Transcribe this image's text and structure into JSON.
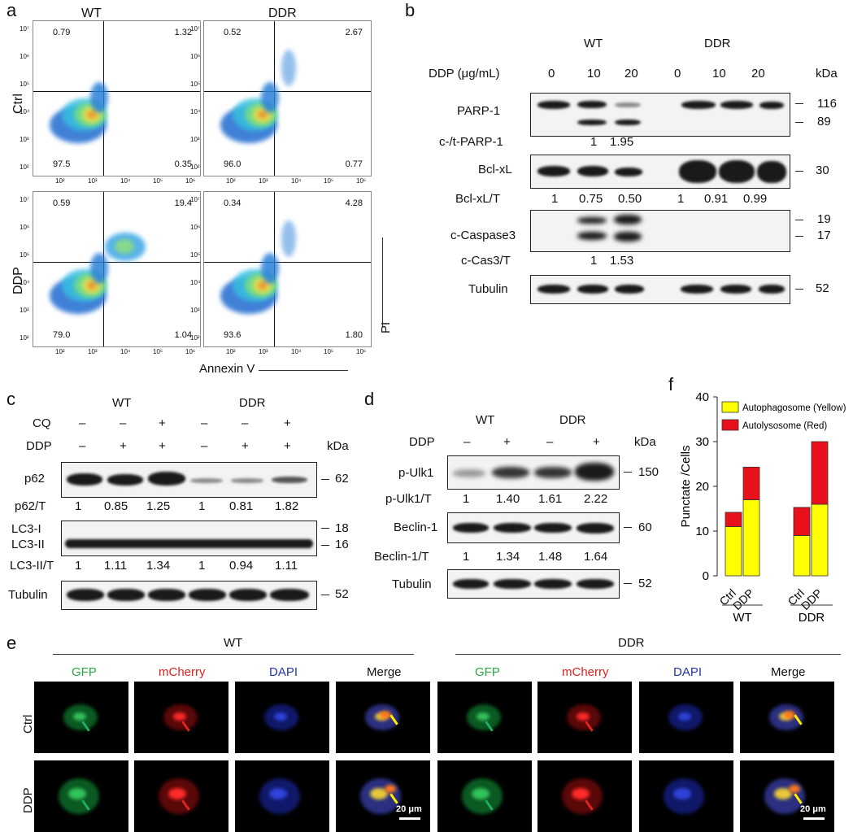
{
  "panel_a": {
    "letter": "a",
    "col_labels": [
      "WT",
      "DDR"
    ],
    "row_labels": [
      "Ctrl",
      "DDP"
    ],
    "x_axis_label": "Annexin V",
    "y_axis_label": "PI",
    "tick_labels": [
      "10²",
      "10³",
      "10⁴",
      "10⁵",
      "10⁶"
    ],
    "y_tick_labels": [
      "10⁷",
      "10⁶",
      "10⁵",
      "10⁴",
      "10³",
      "10²"
    ],
    "plots": [
      {
        "ul": "0.79",
        "ur": "1.32",
        "ll": "97.5",
        "lr": "0.35"
      },
      {
        "ul": "0.52",
        "ur": "2.67",
        "ll": "96.0",
        "lr": "0.77"
      },
      {
        "ul": "0.59",
        "ur": "19.4",
        "ll": "79.0",
        "lr": "1.04"
      },
      {
        "ul": "0.34",
        "ur": "4.28",
        "ll": "93.6",
        "lr": "1.80"
      }
    ]
  },
  "panel_b": {
    "letter": "b",
    "group_labels": [
      "WT",
      "DDR"
    ],
    "dose_label": "DDP (μg/mL)",
    "doses": [
      "0",
      "10",
      "20",
      "0",
      "10",
      "20"
    ],
    "kda_label": "kDa",
    "rows": {
      "parp": {
        "label": "PARP-1",
        "kda": [
          "116",
          "89"
        ]
      },
      "parp_ratio": {
        "label": "c-/t-PARP-1",
        "values": [
          "1",
          "1.95"
        ]
      },
      "bcl": {
        "label": "Bcl-xL",
        "kda": [
          "30"
        ]
      },
      "bcl_ratio": {
        "label": "Bcl-xL/T",
        "values": [
          "1",
          "0.75",
          "0.50",
          "1",
          "0.91",
          "0.99"
        ]
      },
      "casp": {
        "label": "c-Caspase3",
        "kda": [
          "19",
          "17"
        ]
      },
      "casp_ratio": {
        "label": "c-Cas3/T",
        "values": [
          "1",
          "1.53"
        ]
      },
      "tub": {
        "label": "Tubulin",
        "kda": [
          "52"
        ]
      }
    }
  },
  "panel_c": {
    "letter": "c",
    "group_labels": [
      "WT",
      "DDR"
    ],
    "cq_label": "CQ",
    "ddp_label": "DDP",
    "cq_signs": [
      "–",
      "–",
      "+",
      "–",
      "–",
      "+"
    ],
    "ddp_signs": [
      "–",
      "+",
      "+",
      "–",
      "+",
      "+"
    ],
    "kda_label": "kDa",
    "p62": {
      "label": "p62",
      "kda": "62"
    },
    "p62_ratio": {
      "label": "p62/T",
      "values": [
        "1",
        "0.85",
        "1.25",
        "1",
        "0.81",
        "1.82"
      ]
    },
    "lc3": {
      "label1": "LC3-I",
      "label2": "LC3-II",
      "kda1": "18",
      "kda2": "16"
    },
    "lc3_ratio": {
      "label": "LC3-II/T",
      "values": [
        "1",
        "1.11",
        "1.34",
        "1",
        "0.94",
        "1.11"
      ]
    },
    "tub": {
      "label": "Tubulin",
      "kda": "52"
    }
  },
  "panel_d": {
    "letter": "d",
    "group_labels": [
      "WT",
      "DDR"
    ],
    "ddp_label": "DDP",
    "ddp_signs": [
      "–",
      "+",
      "–",
      "+"
    ],
    "kda_label": "kDa",
    "pulk": {
      "label": "p-Ulk1",
      "kda": "150"
    },
    "pulk_ratio": {
      "label": "p-Ulk1/T",
      "values": [
        "1",
        "1.40",
        "1.61",
        "2.22"
      ]
    },
    "beclin": {
      "label": "Beclin-1",
      "kda": "60"
    },
    "beclin_ratio": {
      "label": "Beclin-1/T",
      "values": [
        "1",
        "1.34",
        "1.48",
        "1.64"
      ]
    },
    "tub": {
      "label": "Tubulin",
      "kda": "52"
    }
  },
  "panel_e": {
    "letter": "e",
    "group_labels": [
      "WT",
      "DDR"
    ],
    "channels": [
      "GFP",
      "mCherry",
      "DAPI",
      "Merge",
      "GFP",
      "mCherry",
      "DAPI",
      "Merge"
    ],
    "channel_colors": [
      "#2aa84a",
      "#e0201c",
      "#2233aa",
      "#111111",
      "#2aa84a",
      "#e0201c",
      "#2233aa",
      "#111111"
    ],
    "row_labels": [
      "Ctrl",
      "DDP"
    ],
    "scale_bar": "20 μm"
  },
  "chart_data": {
    "type": "bar",
    "letter": "f",
    "stacked": true,
    "categories": [
      "Ctrl",
      "DDP",
      "Ctrl",
      "DDP"
    ],
    "group_labels": [
      "WT",
      "DDR"
    ],
    "series": [
      {
        "name": "Autophagosome (Yellow)",
        "color": "#ffff00",
        "values": [
          11,
          17,
          9,
          16
        ]
      },
      {
        "name": "Autolysosome (Red)",
        "color": "#e8101a",
        "values": [
          3.2,
          7.3,
          6.3,
          14
        ]
      }
    ],
    "ylabel": "Punctate /Cells",
    "ylim": [
      0,
      40
    ],
    "yticks": [
      "0",
      "10",
      "20",
      "30",
      "40"
    ],
    "legend": "top-right"
  }
}
